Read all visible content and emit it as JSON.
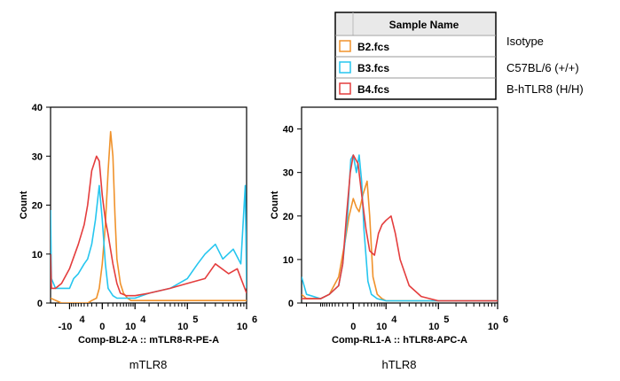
{
  "legend": {
    "header": "Sample Name",
    "entries": [
      {
        "name": "B2.fcs",
        "color": "#f0922b",
        "annotation": "Isotype"
      },
      {
        "name": "B3.fcs",
        "color": "#26c6ef",
        "annotation": "C57BL/6 (+/+)"
      },
      {
        "name": "B4.fcs",
        "color": "#e43d3d",
        "annotation": "B-hTLR8  (H/H)"
      }
    ]
  },
  "chart_data": [
    {
      "type": "line",
      "caption": "mTLR8",
      "xlabel": "Comp-BL2-A :: mTLR8-R-PE-A",
      "ylabel": "Count",
      "ylim": [
        0,
        40
      ],
      "y_ticks": [
        0,
        10,
        20,
        30,
        40
      ],
      "x_ticks": [
        {
          "x": -10000,
          "label": "-10",
          "exp": "4"
        },
        {
          "x": 0,
          "label": "0",
          "exp": ""
        },
        {
          "x": 10000,
          "label": "10",
          "exp": "4"
        },
        {
          "x": 100000,
          "label": "10",
          "exp": "5"
        },
        {
          "x": 1000000,
          "label": "10",
          "exp": "6"
        }
      ],
      "x_scale": "biexponential",
      "xlim": [
        -25000,
        1000000
      ],
      "series": [
        {
          "name": "B2.fcs",
          "color": "#f0922b",
          "x": [
            -25000,
            -15000,
            -8000,
            -5000,
            -3000,
            -2000,
            -1000,
            -500,
            0,
            500,
            1000,
            1500,
            2000,
            2500,
            3000,
            4000,
            5000,
            6500,
            8000,
            10000,
            20000,
            50000,
            100000,
            200000,
            400000,
            700000,
            1000000
          ],
          "y": [
            1,
            0,
            0,
            0,
            0,
            0.5,
            1,
            3,
            8,
            16,
            27,
            35,
            30,
            18,
            9,
            4,
            2,
            1,
            0.5,
            0.5,
            0.5,
            0.5,
            0.5,
            0.5,
            0.5,
            0.5,
            0.5
          ]
        },
        {
          "name": "B3.fcs",
          "color": "#26c6ef",
          "x": [
            -25000,
            -24000,
            -20000,
            -15000,
            -12000,
            -10000,
            -8000,
            -6000,
            -4000,
            -3000,
            -2000,
            -1200,
            -500,
            0,
            500,
            1000,
            2000,
            3000,
            5000,
            8000,
            10000,
            20000,
            50000,
            100000,
            150000,
            200000,
            300000,
            400000,
            600000,
            800000,
            950000,
            1000000
          ],
          "y": [
            19,
            5,
            3,
            3,
            3,
            3,
            5,
            6,
            8,
            9,
            12,
            17,
            24,
            17,
            8,
            3,
            1.5,
            1,
            1,
            1,
            1,
            2,
            3,
            5,
            8,
            10,
            12,
            9,
            11,
            8,
            24,
            3
          ]
        },
        {
          "name": "B4.fcs",
          "color": "#e43d3d",
          "x": [
            -25000,
            -24000,
            -20000,
            -15000,
            -10000,
            -6000,
            -4000,
            -3000,
            -2000,
            -1000,
            -500,
            0,
            500,
            1000,
            2000,
            3000,
            4000,
            6000,
            10000,
            20000,
            50000,
            100000,
            200000,
            300000,
            500000,
            700000,
            1000000
          ],
          "y": [
            10,
            3,
            3,
            4,
            7,
            12,
            16,
            20,
            27,
            30,
            29,
            22,
            17,
            14,
            8,
            4,
            2,
            1.5,
            1.5,
            2,
            3,
            4,
            5,
            8,
            6,
            7,
            2
          ]
        }
      ]
    },
    {
      "type": "line",
      "caption": "hTLR8",
      "xlabel": "Comp-RL1-A :: hTLR8-APC-A",
      "ylabel": "Count",
      "ylim": [
        0,
        45
      ],
      "y_ticks": [
        0,
        10,
        20,
        30,
        40
      ],
      "x_ticks": [
        {
          "x": 0,
          "label": "0",
          "exp": ""
        },
        {
          "x": 10000,
          "label": "10",
          "exp": "4"
        },
        {
          "x": 100000,
          "label": "10",
          "exp": "5"
        },
        {
          "x": 1000000,
          "label": "10",
          "exp": "6"
        }
      ],
      "x_scale": "biexponential",
      "xlim": [
        -25000,
        1000000
      ],
      "series": [
        {
          "name": "B2.fcs",
          "color": "#f0922b",
          "x": [
            -25000,
            -20000,
            -10000,
            -6000,
            -3000,
            -1500,
            -700,
            0,
            500,
            1000,
            1800,
            2800,
            3500,
            4500,
            6000,
            8000,
            10000,
            20000,
            100000,
            1000000
          ],
          "y": [
            2,
            1,
            1,
            2,
            6,
            14,
            20,
            24,
            22,
            21,
            25,
            28,
            20,
            6,
            2,
            1,
            0.5,
            0.5,
            0.5,
            0.5
          ]
        },
        {
          "name": "B3.fcs",
          "color": "#26c6ef",
          "x": [
            -25000,
            -20000,
            -10000,
            -6000,
            -3000,
            -2000,
            -1000,
            -400,
            0,
            500,
            1000,
            1500,
            2000,
            3000,
            4000,
            6000,
            10000,
            20000,
            100000,
            1000000
          ],
          "y": [
            6,
            2,
            1,
            2,
            4,
            9,
            20,
            33,
            34,
            30,
            34,
            28,
            17,
            5,
            2,
            1,
            0.5,
            0.5,
            0.5,
            0.5
          ]
        },
        {
          "name": "B4.fcs",
          "color": "#e43d3d",
          "x": [
            -25000,
            -20000,
            -10000,
            -6000,
            -3000,
            -2000,
            -1200,
            -500,
            0,
            800,
            1500,
            2500,
            3500,
            5000,
            6500,
            8000,
            10000,
            13000,
            16000,
            20000,
            30000,
            50000,
            100000,
            1000000
          ],
          "y": [
            1,
            1,
            1,
            2,
            4,
            9,
            20,
            30,
            34,
            32,
            25,
            17,
            12,
            11,
            16,
            18,
            19,
            20,
            16,
            10,
            4,
            1.5,
            0.5,
            0.5
          ]
        }
      ]
    }
  ]
}
